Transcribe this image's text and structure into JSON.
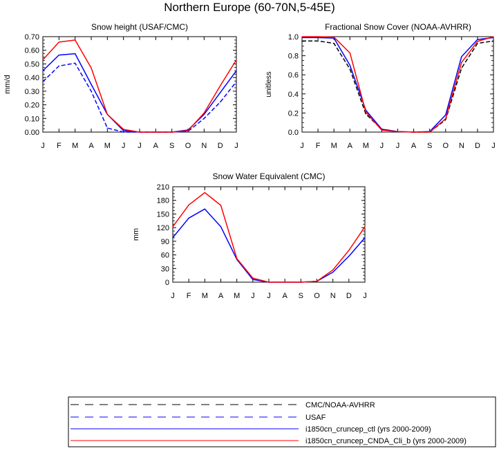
{
  "figure": {
    "title": "Northern Europe (60-70N,5-45E)"
  },
  "styles": {
    "black": "#000000",
    "blue": "#0000ff",
    "red": "#ff0000"
  },
  "legend": {
    "items": [
      {
        "label": "CMC/NOAA-AVHRR",
        "color": "#000000",
        "dash": true
      },
      {
        "label": "USAF",
        "color": "#0000ff",
        "dash": true
      },
      {
        "label": "i1850cn_cruncep_ctl (yrs 2000-2009)",
        "color": "#0000ff",
        "dash": false
      },
      {
        "label": "i1850cn_cruncep_CNDA_Cli_b (yrs 2000-2009)",
        "color": "#ff0000",
        "dash": false
      }
    ]
  },
  "chart_data": [
    {
      "type": "line",
      "title": "Snow height (USAF/CMC)",
      "xlabel": "",
      "ylabel": "mm/d",
      "categories": [
        "J",
        "F",
        "M",
        "A",
        "M",
        "J",
        "J",
        "A",
        "S",
        "O",
        "N",
        "D",
        "J"
      ],
      "ylim": [
        0,
        0.7
      ],
      "yticks": [
        "0.00",
        "0.10",
        "0.20",
        "0.30",
        "0.40",
        "0.50",
        "0.60",
        "0.70"
      ],
      "grid": false,
      "series": [
        {
          "name": "USAF",
          "color": "#0000ff",
          "dash": true,
          "values": [
            0.37,
            0.485,
            0.505,
            0.3,
            0.03,
            0.0,
            0.0,
            0.0,
            0.0,
            0.005,
            0.1,
            0.22,
            0.37
          ]
        },
        {
          "name": "i1850cn_cruncep_ctl (yrs 2000-2009)",
          "color": "#0000ff",
          "dash": false,
          "values": [
            0.45,
            0.565,
            0.575,
            0.35,
            0.13,
            0.01,
            0.0,
            0.0,
            0.0,
            0.015,
            0.13,
            0.29,
            0.45
          ]
        },
        {
          "name": "i1850cn_cruncep_CNDA_Cli_b (yrs 2000-2009)",
          "color": "#ff0000",
          "dash": false,
          "values": [
            0.53,
            0.66,
            0.675,
            0.47,
            0.13,
            0.02,
            0.0,
            0.0,
            0.0,
            0.01,
            0.14,
            0.34,
            0.53
          ]
        }
      ]
    },
    {
      "type": "line",
      "title": "Fractional Snow Cover (NOAA-AVHRR)",
      "xlabel": "",
      "ylabel": "unitless",
      "categories": [
        "J",
        "F",
        "M",
        "A",
        "M",
        "J",
        "J",
        "A",
        "S",
        "O",
        "N",
        "D",
        "J"
      ],
      "ylim": [
        0,
        1.0
      ],
      "yticks": [
        "0.0",
        "0.2",
        "0.4",
        "0.6",
        "0.8",
        "1.0"
      ],
      "grid": false,
      "series": [
        {
          "name": "CMC/NOAA-AVHRR",
          "color": "#000000",
          "dash": true,
          "values": [
            0.955,
            0.955,
            0.93,
            0.66,
            0.19,
            0.03,
            0.005,
            0.0,
            0.0,
            0.13,
            0.67,
            0.93,
            0.955
          ]
        },
        {
          "name": "i1850cn_cruncep_ctl (yrs 2000-2009)",
          "color": "#0000ff",
          "dash": false,
          "values": [
            0.99,
            0.99,
            0.985,
            0.7,
            0.23,
            0.03,
            0.005,
            0.0,
            0.005,
            0.18,
            0.79,
            0.97,
            0.99
          ]
        },
        {
          "name": "i1850cn_cruncep_CNDA_Cli_b (yrs 2000-2009)",
          "color": "#ff0000",
          "dash": false,
          "values": [
            1.0,
            1.0,
            0.995,
            0.83,
            0.21,
            0.02,
            0.005,
            0.0,
            0.0,
            0.14,
            0.73,
            0.95,
            1.0
          ]
        }
      ]
    },
    {
      "type": "line",
      "title": "Snow Water Equivalent (CMC)",
      "xlabel": "",
      "ylabel": "mm",
      "categories": [
        "J",
        "F",
        "M",
        "A",
        "M",
        "J",
        "J",
        "A",
        "S",
        "O",
        "N",
        "D",
        "J"
      ],
      "ylim": [
        0,
        210
      ],
      "yticks": [
        "0",
        "30",
        "60",
        "90",
        "120",
        "150",
        "180",
        "210"
      ],
      "grid": false,
      "series": [
        {
          "name": "i1850cn_cruncep_ctl (yrs 2000-2009)",
          "color": "#0000ff",
          "dash": false,
          "values": [
            98,
            141,
            161,
            122,
            50,
            6,
            0,
            0,
            0,
            2,
            22,
            57,
            98
          ]
        },
        {
          "name": "i1850cn_cruncep_CNDA_Cli_b (yrs 2000-2009)",
          "color": "#ff0000",
          "dash": false,
          "values": [
            122,
            170,
            197,
            169,
            52,
            9,
            0,
            0,
            0,
            2,
            27,
            70,
            122
          ]
        }
      ]
    }
  ]
}
